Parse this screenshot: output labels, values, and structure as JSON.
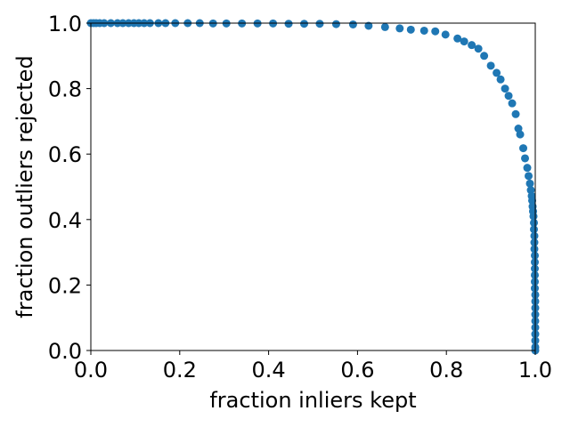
{
  "chart_data": {
    "type": "scatter",
    "title": "",
    "xlabel": "fraction inliers kept",
    "ylabel": "fraction outliers rejected",
    "xlim": [
      0.0,
      1.0
    ],
    "ylim": [
      0.0,
      1.0
    ],
    "xticks": [
      "0.0",
      "0.2",
      "0.4",
      "0.6",
      "0.8",
      "1.0"
    ],
    "yticks": [
      "0.0",
      "0.2",
      "0.4",
      "0.6",
      "0.8",
      "1.0"
    ],
    "grid": false,
    "legend": "none",
    "marker_color": "#1f77b4",
    "series": [
      {
        "points": [
          [
            0.0,
            1.0
          ],
          [
            0.006,
            1.0
          ],
          [
            0.012,
            1.0
          ],
          [
            0.02,
            1.0
          ],
          [
            0.03,
            1.0
          ],
          [
            0.045,
            1.0
          ],
          [
            0.06,
            1.0
          ],
          [
            0.072,
            1.0
          ],
          [
            0.085,
            1.0
          ],
          [
            0.097,
            1.0
          ],
          [
            0.108,
            1.0
          ],
          [
            0.12,
            1.0
          ],
          [
            0.133,
            1.0
          ],
          [
            0.152,
            1.0
          ],
          [
            0.168,
            1.0
          ],
          [
            0.19,
            1.0
          ],
          [
            0.218,
            1.0
          ],
          [
            0.245,
            1.0
          ],
          [
            0.275,
            0.999
          ],
          [
            0.305,
            0.999
          ],
          [
            0.34,
            0.999
          ],
          [
            0.375,
            0.999
          ],
          [
            0.41,
            0.999
          ],
          [
            0.445,
            0.998
          ],
          [
            0.48,
            0.998
          ],
          [
            0.515,
            0.998
          ],
          [
            0.552,
            0.997
          ],
          [
            0.59,
            0.996
          ],
          [
            0.625,
            0.992
          ],
          [
            0.662,
            0.988
          ],
          [
            0.695,
            0.984
          ],
          [
            0.72,
            0.98
          ],
          [
            0.75,
            0.977
          ],
          [
            0.775,
            0.975
          ],
          [
            0.798,
            0.965
          ],
          [
            0.825,
            0.953
          ],
          [
            0.84,
            0.944
          ],
          [
            0.857,
            0.933
          ],
          [
            0.872,
            0.922
          ],
          [
            0.885,
            0.9
          ],
          [
            0.9,
            0.87
          ],
          [
            0.913,
            0.848
          ],
          [
            0.922,
            0.828
          ],
          [
            0.932,
            0.8
          ],
          [
            0.94,
            0.778
          ],
          [
            0.948,
            0.755
          ],
          [
            0.956,
            0.722
          ],
          [
            0.962,
            0.678
          ],
          [
            0.966,
            0.66
          ],
          [
            0.973,
            0.618
          ],
          [
            0.977,
            0.587
          ],
          [
            0.982,
            0.558
          ],
          [
            0.985,
            0.533
          ],
          [
            0.988,
            0.51
          ],
          [
            0.99,
            0.49
          ],
          [
            0.992,
            0.472
          ],
          [
            0.993,
            0.458
          ],
          [
            0.994,
            0.44
          ],
          [
            0.995,
            0.425
          ],
          [
            0.996,
            0.41
          ],
          [
            0.997,
            0.39
          ],
          [
            0.997,
            0.37
          ],
          [
            0.998,
            0.35
          ],
          [
            0.998,
            0.33
          ],
          [
            0.998,
            0.31
          ],
          [
            0.999,
            0.29
          ],
          [
            0.999,
            0.27
          ],
          [
            0.999,
            0.25
          ],
          [
            0.999,
            0.23
          ],
          [
            0.999,
            0.21
          ],
          [
            0.999,
            0.19
          ],
          [
            1.0,
            0.17
          ],
          [
            1.0,
            0.15
          ],
          [
            1.0,
            0.13
          ],
          [
            1.0,
            0.11
          ],
          [
            1.0,
            0.09
          ],
          [
            1.0,
            0.07
          ],
          [
            1.0,
            0.05
          ],
          [
            1.0,
            0.03
          ],
          [
            1.0,
            0.01
          ],
          [
            1.0,
            0.0
          ]
        ]
      }
    ]
  }
}
